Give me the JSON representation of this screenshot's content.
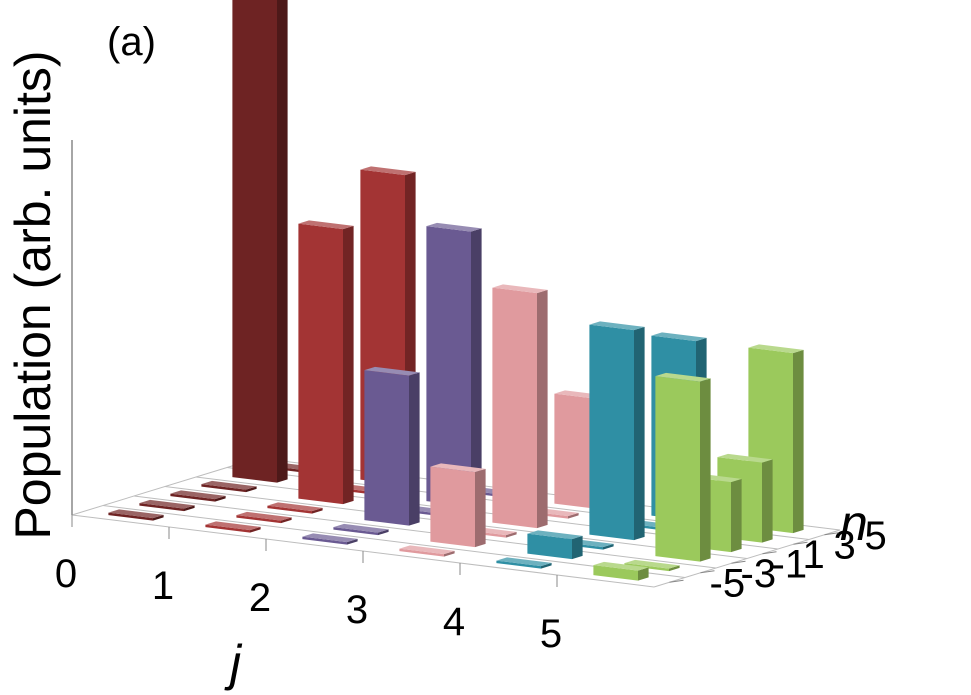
{
  "chart_data": {
    "type": "bar3d",
    "panel_label": "(a)",
    "zlabel": "Population (arb. units)",
    "xlabel": "j",
    "ylabel": "n",
    "x_ticks": [
      "0",
      "1",
      "2",
      "3",
      "4",
      "5"
    ],
    "y_ticks": [
      "-5",
      "-3",
      "-1",
      "1",
      "3",
      "5"
    ],
    "x": [
      0,
      1,
      2,
      3,
      4,
      5
    ],
    "y": [
      -5,
      -3,
      -1,
      1,
      3,
      5
    ],
    "grid": true,
    "legend": "none",
    "series": [
      {
        "j": 0,
        "color": "#6e2323",
        "values": [
          0.005,
          0.005,
          0.005,
          0.005,
          1.0,
          0.005
        ]
      },
      {
        "j": 1,
        "color": "#a33434",
        "values": [
          0.005,
          0.005,
          0.005,
          0.55,
          0.005,
          0.62
        ]
      },
      {
        "j": 2,
        "color": "#6a5a92",
        "values": [
          0.005,
          0.005,
          0.3,
          0.005,
          0.55,
          0.005
        ]
      },
      {
        "j": 3,
        "color": "#e09a9e",
        "values": [
          0.005,
          0.15,
          0.005,
          0.47,
          0.005,
          0.22
        ]
      },
      {
        "j": 4,
        "color": "#2f8fa4",
        "values": [
          0.005,
          0.04,
          0.005,
          0.42,
          0.005,
          0.36
        ]
      },
      {
        "j": 5,
        "color": "#9bc95c",
        "values": [
          0.02,
          0.005,
          0.36,
          0.14,
          0.16,
          0.36
        ]
      }
    ]
  }
}
